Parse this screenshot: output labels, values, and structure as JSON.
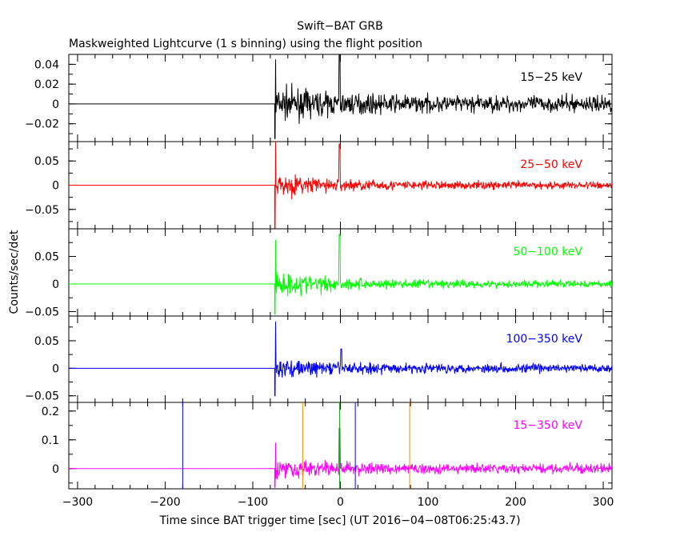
{
  "chart_data": {
    "type": "line",
    "title": "Swift−BAT GRB",
    "subtitle": "Maskweighted Lightcurve (1 s binning) using the flight position",
    "xlabel": "Time since BAT trigger time [sec] (UT 2016−04−08T06:25:43.7)",
    "ylabel": "Counts/sec/det",
    "xlim": [
      -310,
      310
    ],
    "x_ticks": [
      -300,
      -200,
      -100,
      0,
      100,
      200,
      300
    ],
    "x_tick_labels": [
      "−300",
      "−200",
      "−100",
      "0",
      "100",
      "200",
      "300"
    ],
    "data_start": -75,
    "grid": false,
    "panels": [
      {
        "label": "15−25 keV",
        "color": "#000000",
        "ylim": [
          -0.038,
          0.05
        ],
        "y_ticks": [
          -0.02,
          0,
          0.02,
          0.04
        ],
        "y_tick_labels": [
          "−0.02",
          "0",
          "0.02",
          "0.04"
        ],
        "approx_series": {
          "onset_peak": 0.045,
          "onset_trough": -0.035,
          "noise_after_onset": 0.013,
          "noise_decay_to": 0.006,
          "spikes": [
            {
              "x": -1,
              "y": 0.05
            }
          ]
        }
      },
      {
        "label": "25−50 keV",
        "color": "#ff0000",
        "ylim": [
          -0.09,
          0.09
        ],
        "y_ticks": [
          -0.05,
          0,
          0.05
        ],
        "y_tick_labels": [
          "−0.05",
          "0",
          "0.05"
        ],
        "approx_series": {
          "onset_peak": 0.09,
          "onset_trough": -0.09,
          "noise_after_onset": 0.02,
          "noise_decay_to": 0.006,
          "spikes": [
            {
              "x": -1,
              "y": 0.085
            }
          ]
        }
      },
      {
        "label": "50−100 keV",
        "color": "#00ff00",
        "ylim": [
          -0.058,
          0.1
        ],
        "y_ticks": [
          -0.05,
          0,
          0.05
        ],
        "y_tick_labels": [
          "−0.05",
          "0",
          "0.05"
        ],
        "approx_series": {
          "onset_peak": 0.08,
          "onset_trough": -0.055,
          "noise_after_onset": 0.02,
          "noise_decay_to": 0.005,
          "spikes": [
            {
              "x": -1,
              "y": 0.09
            }
          ]
        }
      },
      {
        "label": "100−350 keV",
        "color": "#0000ff",
        "ylim": [
          -0.062,
          0.095
        ],
        "y_ticks": [
          -0.05,
          0,
          0.05
        ],
        "y_tick_labels": [
          "−0.05",
          "0",
          "0.05"
        ],
        "approx_series": {
          "onset_peak": 0.085,
          "onset_trough": -0.05,
          "noise_after_onset": 0.014,
          "noise_decay_to": 0.006,
          "spikes": [
            {
              "x": 1,
              "y": 0.035
            }
          ]
        }
      },
      {
        "label": "15−350 keV",
        "color": "#ff00ff",
        "ylim": [
          -0.07,
          0.23
        ],
        "y_ticks": [
          0,
          0.1,
          0.2
        ],
        "y_tick_labels": [
          "0",
          "0.1",
          "0.2"
        ],
        "approx_series": {
          "onset_peak": 0.09,
          "onset_trough": -0.065,
          "noise_after_onset": 0.03,
          "noise_decay_to": 0.012,
          "spikes": [
            {
              "x": -1,
              "y": 0.14
            }
          ]
        },
        "markers": [
          {
            "x": -180,
            "color": "#0000ff"
          },
          {
            "x": -43,
            "color": "#ff8c00"
          },
          {
            "x": -1,
            "color": "#00aa00"
          },
          {
            "x": 17,
            "color": "#0000ff"
          },
          {
            "x": 79,
            "color": "#ff8c00"
          }
        ]
      }
    ]
  }
}
